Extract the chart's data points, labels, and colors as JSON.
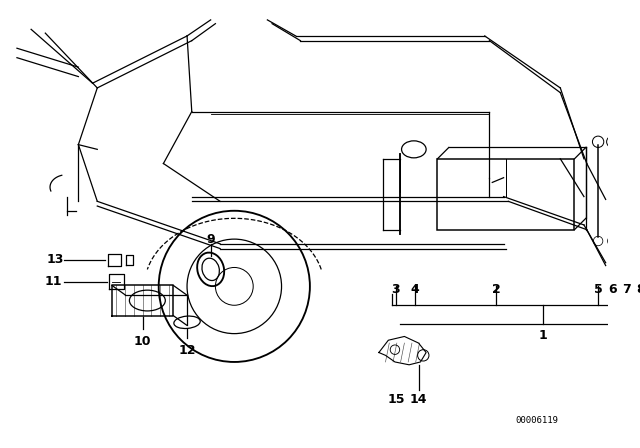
{
  "bg_color": "#ffffff",
  "line_color": "#000000",
  "figsize": [
    6.4,
    4.48
  ],
  "dpi": 100,
  "diagram_code": "00006119"
}
